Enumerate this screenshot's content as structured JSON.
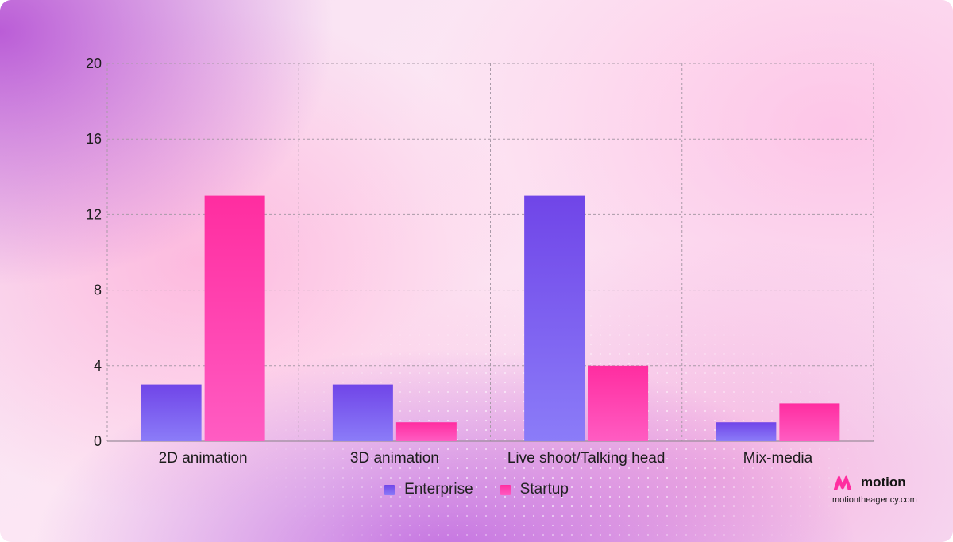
{
  "chart_data": {
    "type": "bar",
    "categories": [
      "2D animation",
      "3D animation",
      "Live shoot/Talking head",
      "Mix-media"
    ],
    "series": [
      {
        "name": "Enterprise",
        "values": [
          3,
          3,
          13,
          1
        ],
        "color_top": "#7045e8",
        "color_bottom": "#8b7cf8"
      },
      {
        "name": "Startup",
        "values": [
          13,
          1,
          4,
          2
        ],
        "color_top": "#ff2da0",
        "color_bottom": "#ff5cc2"
      }
    ],
    "ylim": [
      0,
      20
    ],
    "yticks": [
      "0",
      "4",
      "8",
      "12",
      "16",
      "20"
    ],
    "grid": true,
    "legend_position": "bottom-center"
  },
  "legend": [
    {
      "label": "Enterprise",
      "color": "#7b52f0"
    },
    {
      "label": "Startup",
      "color": "#ff3aac"
    }
  ],
  "brand": {
    "name": "motion",
    "url": "motiontheagency.com",
    "mark_color": "#ff2da0"
  }
}
